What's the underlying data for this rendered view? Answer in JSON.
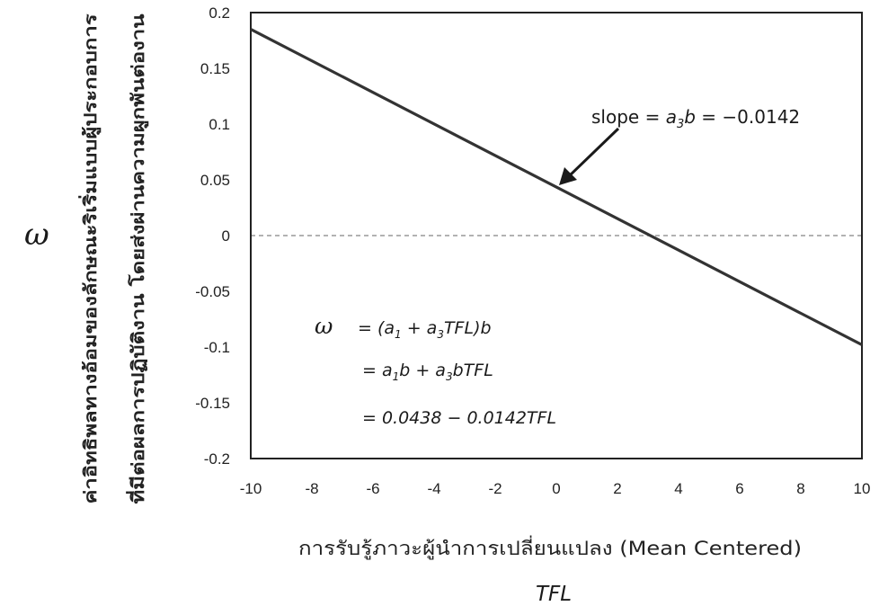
{
  "chart_data": {
    "type": "line",
    "xlim": [
      -10,
      10
    ],
    "ylim": [
      -0.2,
      0.2
    ],
    "x_ticks": [
      "-10",
      "-8",
      "-6",
      "-4",
      "-2",
      "0",
      "2",
      "4",
      "6",
      "8",
      "10"
    ],
    "y_ticks": [
      "0.2",
      "0.15",
      "0.1",
      "0.05",
      "0",
      "-0.05",
      "-0.1",
      "-0.15",
      "-0.2"
    ],
    "x_tick_values": [
      -10,
      -8,
      -6,
      -4,
      -2,
      0,
      2,
      4,
      6,
      8,
      10
    ],
    "y_tick_values": [
      0.2,
      0.15,
      0.1,
      0.05,
      0,
      -0.05,
      -0.1,
      -0.15,
      -0.2
    ],
    "series": [
      {
        "x": [
          -10,
          10
        ],
        "y": [
          0.185,
          -0.098
        ],
        "color": "#333333"
      }
    ],
    "reference_line": {
      "y": 0,
      "style": "dashed",
      "color": "#999999"
    },
    "y_symbol": "ω",
    "ylabel_line1": "ค่าอิทธิพลทางอ้อมของลักษณะริเริ่มแบบผู้ประกอบการ",
    "ylabel_line2": "ที่มีต่อผลการปฏิบัติงาน โดยส่งผ่านความผูกพันต่องาน",
    "xlabel": "การรับรู้ภาวะผู้นำการเปลี่ยนแปลง (Mean Centered)",
    "xlabel_symbol": "TFL",
    "slope_annotation": {
      "prefix": "slope = ",
      "a": "a",
      "sub": "3",
      "b": "b",
      "suffix": " = −0.0142"
    },
    "formula": {
      "symbol": "ω",
      "line1": {
        "pre": "= (a",
        "sub1": "1",
        "mid": " + a",
        "sub2": "3",
        "post": "TFL)b"
      },
      "line2": {
        "pre": "= a",
        "sub1": "1",
        "mid": "b + a",
        "sub2": "3",
        "post": "bTFL"
      },
      "line3": "= 0.0438 − 0.0142TFL"
    }
  }
}
